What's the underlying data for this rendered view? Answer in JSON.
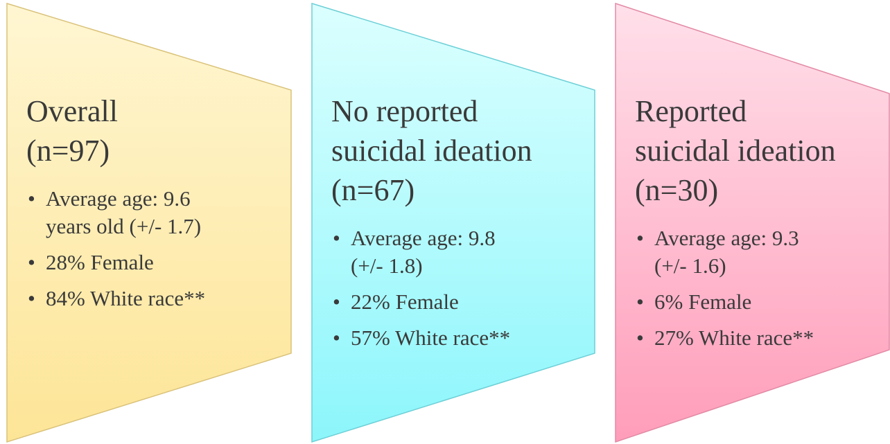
{
  "panels": [
    {
      "heading": [
        "Overall",
        "(n=97)"
      ],
      "bullets": [
        [
          "Average age: 9.6",
          "years old (+/- 1.7)"
        ],
        [
          "28% Female"
        ],
        [
          "84% White race**"
        ]
      ]
    },
    {
      "heading": [
        "No reported",
        "suicidal ideation",
        "(n=67)"
      ],
      "bullets": [
        [
          "Average age: 9.8",
          "(+/- 1.8)"
        ],
        [
          "22% Female"
        ],
        [
          "57% White race**"
        ]
      ]
    },
    {
      "heading": [
        "Reported",
        "suicidal ideation",
        "(n=30)"
      ],
      "bullets": [
        [
          "Average age: 9.3",
          "(+/- 1.6)"
        ],
        [
          "6% Female"
        ],
        [
          "27% White race**"
        ]
      ]
    }
  ]
}
